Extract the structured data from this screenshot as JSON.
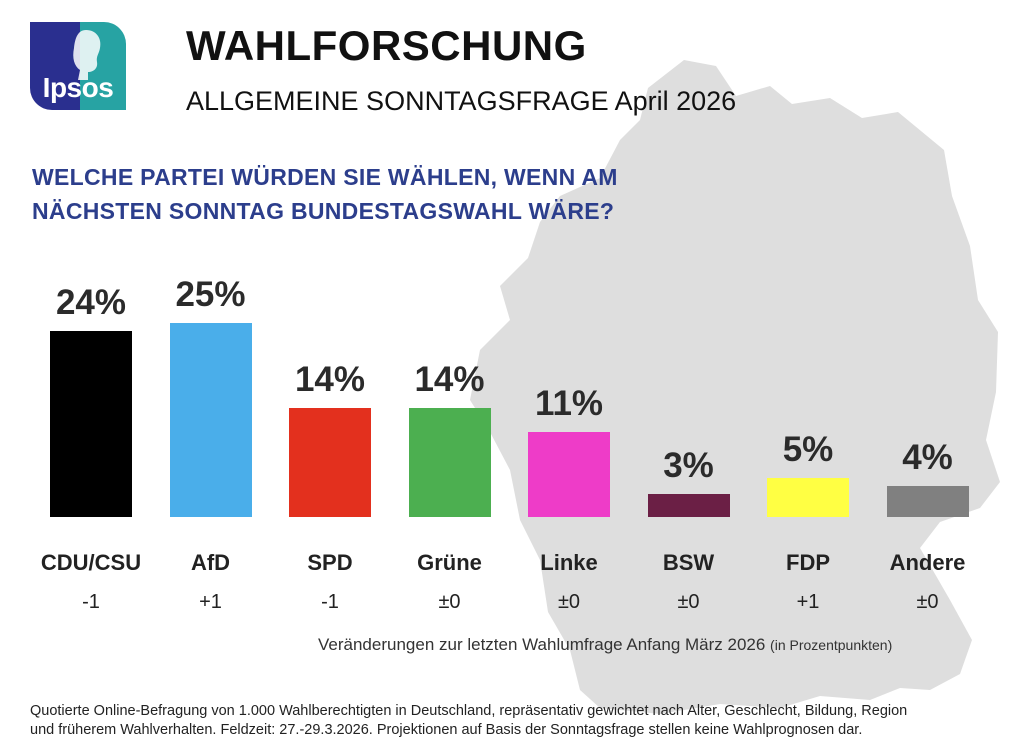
{
  "brand": {
    "logo_text": "Ipsos"
  },
  "header": {
    "title": "WAHLFORSCHUNG",
    "subtitle": "ALLGEMEINE SONNTAGSFRAGE April 2026"
  },
  "question": {
    "line1": "WELCHE PARTEI WÜRDEN SIE WÄHLEN, WENN AM",
    "line2": "NÄCHSTEN SONNTAG BUNDESTAGSWAHL WÄRE?"
  },
  "chart_data": {
    "type": "bar",
    "categories": [
      "CDU/CSU",
      "AfD",
      "SPD",
      "Grüne",
      "Linke",
      "BSW",
      "FDP",
      "Andere"
    ],
    "values": [
      24,
      25,
      14,
      14,
      11,
      3,
      5,
      4
    ],
    "value_labels": [
      "24%",
      "25%",
      "14%",
      "14%",
      "11%",
      "3%",
      "5%",
      "4%"
    ],
    "changes": [
      "-1",
      "+1",
      "-1",
      "±0",
      "±0",
      "±0",
      "+1",
      "±0"
    ],
    "colors": [
      "#000000",
      "#4aaeea",
      "#e3301e",
      "#4caf50",
      "#ee3cc8",
      "#6b1f45",
      "#ffff43",
      "#808080"
    ],
    "ylim": [
      0,
      25
    ],
    "grid": false
  },
  "notes": {
    "changes_note": "Veränderungen zur letzten Wahlumfrage Anfang März 2026",
    "changes_unit": "(in Prozentpunkten)"
  },
  "footer": {
    "line1": "Quotierte Online-Befragung von 1.000 Wahlberechtigten in Deutschland, repräsentativ gewichtet nach Alter, Geschlecht, Bildung, Region",
    "line2": "und früherem Wahlverhalten. Feldzeit: 27.-29.3.2026. Projektionen auf Basis der Sonntagsfrage stellen keine Wahlprognosen dar."
  }
}
